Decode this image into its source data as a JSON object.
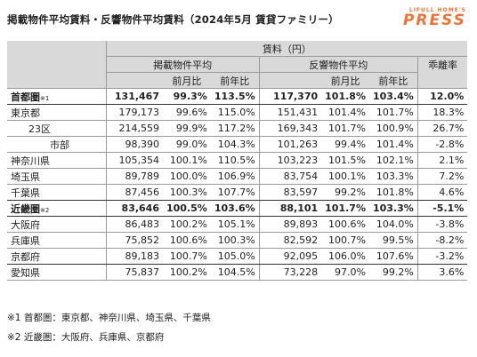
{
  "title": "掲載物件平均賃料・反響物件平均賃料（2024年5月 賃貸ファミリー）",
  "brand": {
    "top": "LIFULL HOME'S",
    "main": "PRESS"
  },
  "header": {
    "rent": "賃料（円）",
    "listed": "掲載物件平均",
    "response": "反響物件平均",
    "divergence": "乖離率",
    "mom": "前月比",
    "yoy": "前年比"
  },
  "rows": [
    {
      "name": "首都圏",
      "mark": "※1",
      "l": "131,467",
      "lm": "99.3%",
      "ly": "113.5%",
      "r": "117,370",
      "rm": "101.8%",
      "ry": "103.4%",
      "d": "12.0%"
    },
    {
      "name": "東京都",
      "mark": "",
      "l": "179,173",
      "lm": "99.6%",
      "ly": "115.0%",
      "r": "151,431",
      "rm": "101.4%",
      "ry": "101.7%",
      "d": "18.3%"
    },
    {
      "name": "23区",
      "mark": "",
      "l": "214,559",
      "lm": "99.9%",
      "ly": "117.2%",
      "r": "169,343",
      "rm": "101.7%",
      "ry": "100.9%",
      "d": "26.7%"
    },
    {
      "name": "市部",
      "mark": "",
      "l": "98,390",
      "lm": "99.0%",
      "ly": "104.3%",
      "r": "101,263",
      "rm": "99.4%",
      "ry": "101.4%",
      "d": "-2.8%"
    },
    {
      "name": "神奈川県",
      "mark": "",
      "l": "105,354",
      "lm": "100.1%",
      "ly": "110.5%",
      "r": "103,223",
      "rm": "101.5%",
      "ry": "102.1%",
      "d": "2.1%"
    },
    {
      "name": "埼玉県",
      "mark": "",
      "l": "89,789",
      "lm": "100.0%",
      "ly": "106.9%",
      "r": "83,754",
      "rm": "100.1%",
      "ry": "103.3%",
      "d": "7.2%"
    },
    {
      "name": "千葉県",
      "mark": "",
      "l": "87,456",
      "lm": "100.3%",
      "ly": "107.7%",
      "r": "83,597",
      "rm": "99.2%",
      "ry": "101.8%",
      "d": "4.6%"
    },
    {
      "name": "近畿圏",
      "mark": "※2",
      "l": "83,646",
      "lm": "100.5%",
      "ly": "103.6%",
      "r": "88,101",
      "rm": "101.7%",
      "ry": "103.3%",
      "d": "-5.1%"
    },
    {
      "name": "大阪府",
      "mark": "",
      "l": "86,483",
      "lm": "100.2%",
      "ly": "105.1%",
      "r": "89,893",
      "rm": "100.6%",
      "ry": "104.0%",
      "d": "-3.8%"
    },
    {
      "name": "兵庫県",
      "mark": "",
      "l": "75,852",
      "lm": "100.6%",
      "ly": "100.3%",
      "r": "82,592",
      "rm": "100.7%",
      "ry": "99.5%",
      "d": "-8.2%"
    },
    {
      "name": "京都府",
      "mark": "",
      "l": "89,183",
      "lm": "100.7%",
      "ly": "105.0%",
      "r": "92,095",
      "rm": "106.0%",
      "ry": "107.6%",
      "d": "-3.2%"
    },
    {
      "name": "愛知県",
      "mark": "",
      "l": "75,837",
      "lm": "100.2%",
      "ly": "104.5%",
      "r": "73,228",
      "rm": "97.0%",
      "ry": "99.2%",
      "d": "3.6%"
    }
  ],
  "notes": [
    "※1 首都圏：東京都、神奈川県、埼玉県、千葉県",
    "※2 近畿圏：大阪府、兵庫県、京都府"
  ]
}
